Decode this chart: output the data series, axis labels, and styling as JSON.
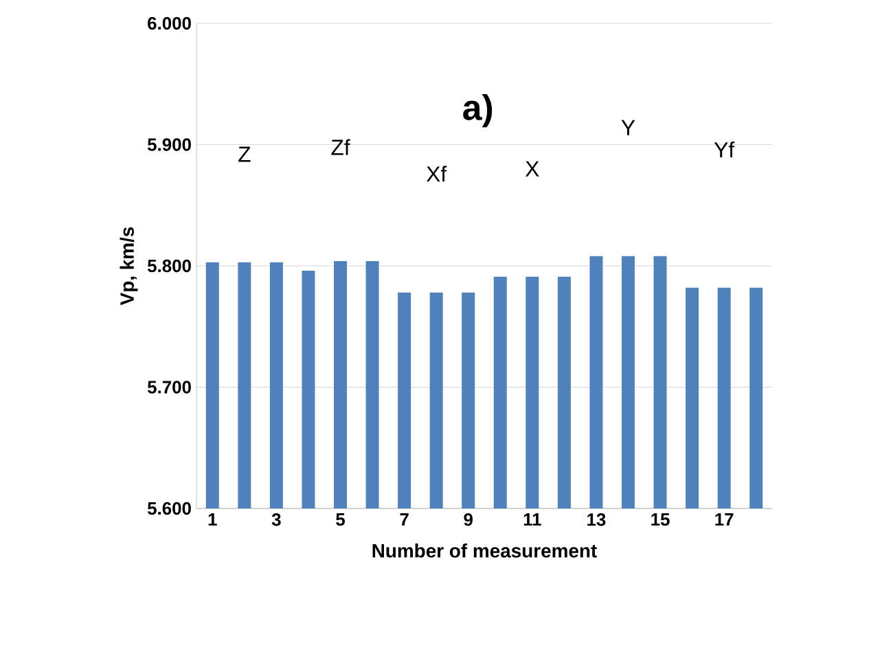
{
  "chart_data": {
    "type": "bar",
    "title": "a)",
    "xlabel": "Number of measurement",
    "ylabel": "Vp, km/s",
    "categories": [
      "1",
      null,
      "3",
      null,
      "5",
      null,
      "7",
      null,
      "9",
      null,
      "11",
      null,
      "13",
      null,
      "15",
      null,
      "17",
      null
    ],
    "values": [
      5.803,
      5.803,
      5.803,
      5.796,
      5.804,
      5.804,
      5.778,
      5.778,
      5.778,
      5.791,
      5.791,
      5.791,
      5.808,
      5.808,
      5.808,
      5.782,
      5.782,
      5.782
    ],
    "color": "#4f81bd",
    "ylim": [
      5.6,
      6.0
    ],
    "yticks": [
      {
        "value": 5.6,
        "label": "5.600"
      },
      {
        "value": 5.7,
        "label": "5.700"
      },
      {
        "value": 5.8,
        "label": "5.800"
      },
      {
        "value": 5.9,
        "label": "5.900"
      },
      {
        "value": 6.0,
        "label": "6.000"
      }
    ],
    "grid": "y",
    "annotations": [
      "Z",
      "Zf",
      "Xf",
      "X",
      "Y",
      "Yf"
    ]
  }
}
